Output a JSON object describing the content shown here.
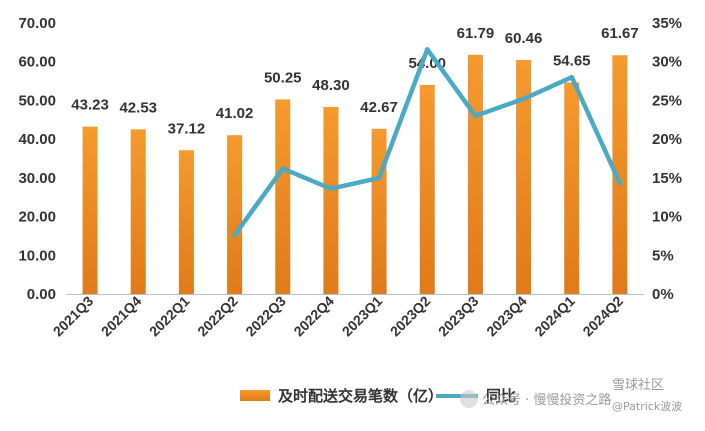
{
  "chart_data": {
    "type": "bar",
    "categories": [
      "2021Q3",
      "2021Q4",
      "2022Q1",
      "2022Q2",
      "2022Q3",
      "2022Q4",
      "2023Q1",
      "2023Q2",
      "2023Q3",
      "2023Q4",
      "2024Q1",
      "2024Q2"
    ],
    "series": [
      {
        "name": "及时配送交易笔数（亿）",
        "type": "bar",
        "axis": "left",
        "values": [
          43.23,
          42.53,
          37.12,
          41.02,
          50.25,
          48.3,
          42.67,
          54.0,
          61.79,
          60.46,
          54.65,
          61.67
        ],
        "labels": [
          "43.23",
          "42.53",
          "37.12",
          "41.02",
          "50.25",
          "48.30",
          "42.67",
          "54.00",
          "61.79",
          "60.46",
          "54.65",
          "61.67"
        ]
      },
      {
        "name": "同比",
        "type": "line",
        "axis": "right",
        "values": [
          null,
          null,
          null,
          0.076,
          0.162,
          0.136,
          0.15,
          0.316,
          0.23,
          0.252,
          0.28,
          0.143
        ]
      }
    ],
    "yleft": {
      "lim": [
        0,
        70
      ],
      "ticks": [
        "0.00",
        "10.00",
        "20.00",
        "30.00",
        "40.00",
        "50.00",
        "60.00",
        "70.00"
      ]
    },
    "yright": {
      "lim": [
        0,
        0.35
      ],
      "ticks": [
        "0%",
        "5%",
        "10%",
        "15%",
        "20%",
        "25%",
        "30%",
        "35%"
      ]
    },
    "grid": false,
    "legend_position": "bottom",
    "colors": {
      "bar_top": "#f59a2f",
      "bar_bottom": "#e07a1a",
      "line": "#4aaac4",
      "text": "#333333"
    }
  },
  "watermark": {
    "text": "公众号 · 慢慢投资之路",
    "site": "雪球社区",
    "handle": "@Patrick波波"
  }
}
